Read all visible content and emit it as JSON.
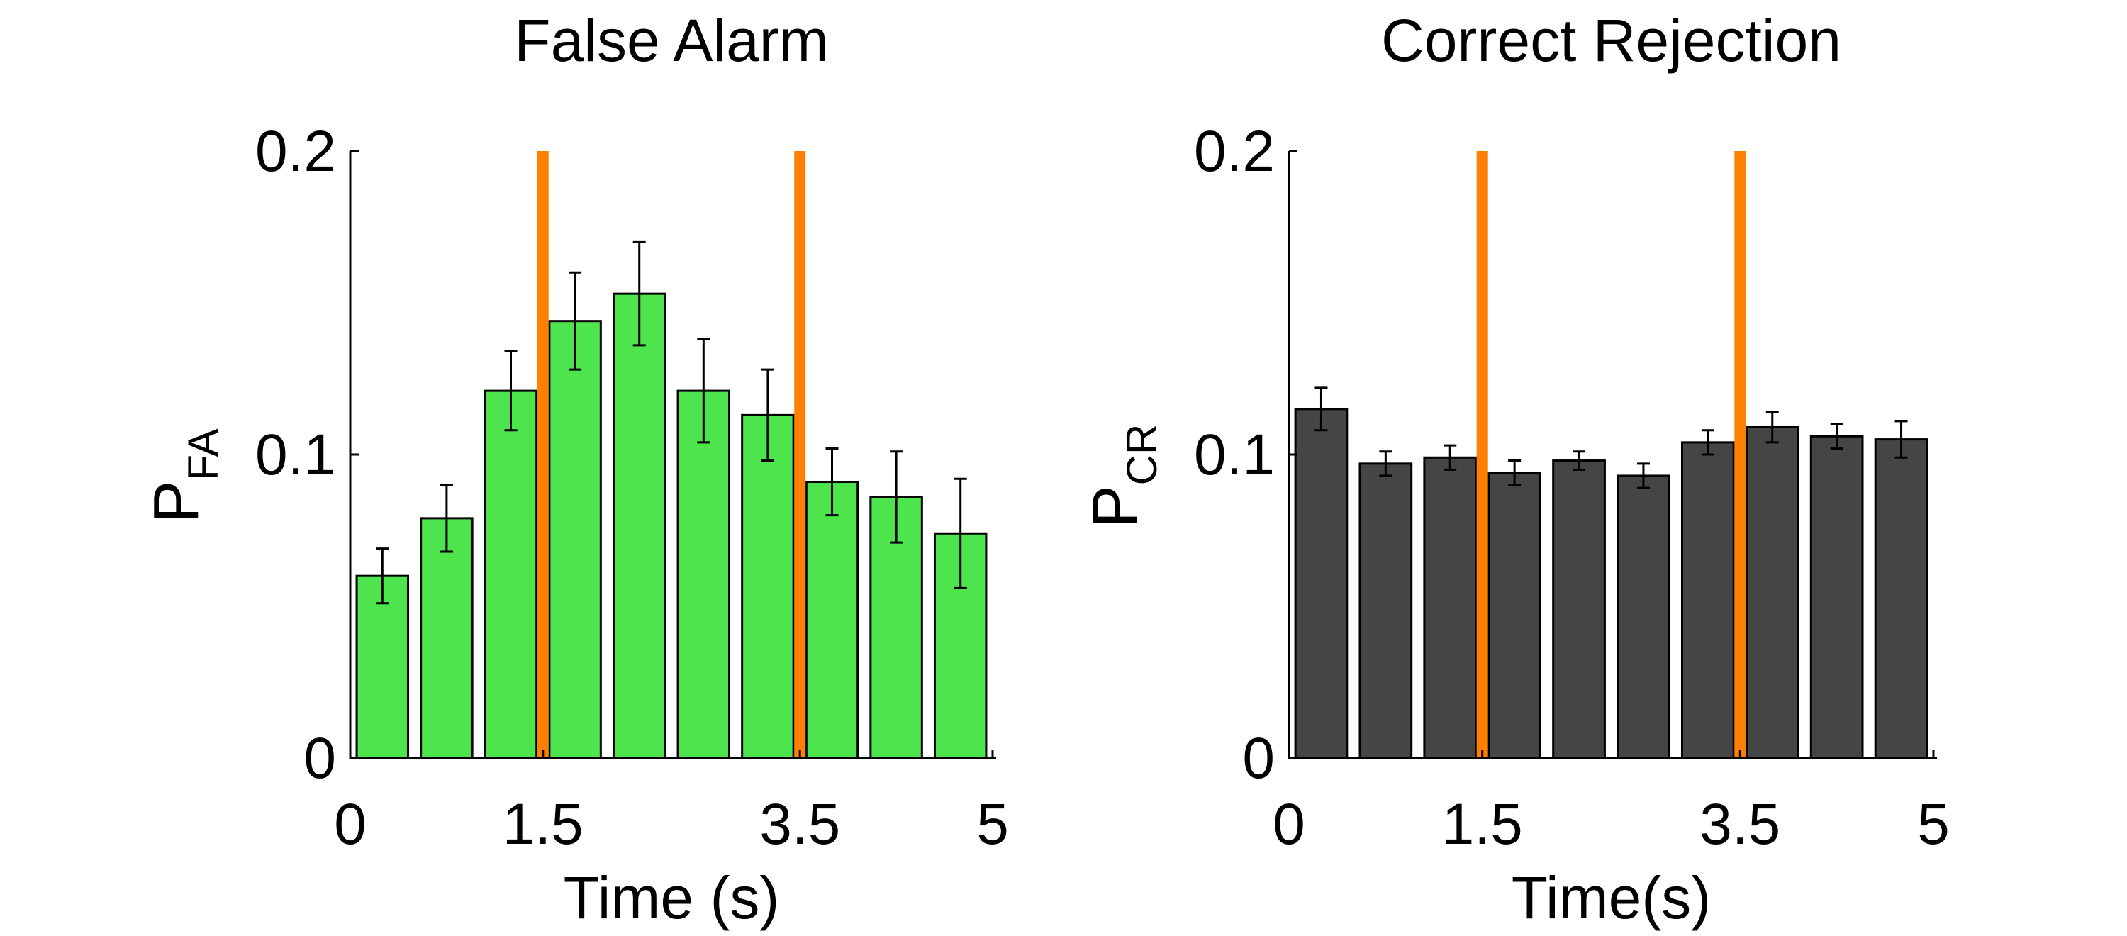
{
  "chart_data": [
    {
      "type": "bar",
      "title": "False Alarm",
      "xlabel": "Time (s)",
      "ylabel": "P",
      "ylabel_subscript": "FA",
      "xlim": [
        0,
        5
      ],
      "ylim": [
        0,
        0.2
      ],
      "xticks": [
        "0",
        "1.5",
        "3.5",
        "5"
      ],
      "yticks": [
        "0",
        "0.1",
        "0.2"
      ],
      "bar_color": "#4de44d",
      "marker_color": "#ff8000",
      "markers_x": [
        1.5,
        3.5
      ],
      "x": [
        0.25,
        0.75,
        1.25,
        1.75,
        2.25,
        2.75,
        3.25,
        3.75,
        4.25,
        4.75
      ],
      "values": [
        0.06,
        0.079,
        0.121,
        0.144,
        0.153,
        0.121,
        0.113,
        0.091,
        0.086,
        0.074
      ],
      "errors": [
        0.009,
        0.011,
        0.013,
        0.016,
        0.017,
        0.017,
        0.015,
        0.011,
        0.015,
        0.018
      ]
    },
    {
      "type": "bar",
      "title": "Correct Rejection",
      "xlabel": "Time(s)",
      "ylabel": "P",
      "ylabel_subscript": "CR",
      "xlim": [
        0,
        5
      ],
      "ylim": [
        0,
        0.2
      ],
      "xticks": [
        "0",
        "1.5",
        "3.5",
        "5"
      ],
      "yticks": [
        "0",
        "0.1",
        "0.2"
      ],
      "bar_color": "#454545",
      "marker_color": "#ff8000",
      "markers_x": [
        1.5,
        3.5
      ],
      "x": [
        0.25,
        0.75,
        1.25,
        1.75,
        2.25,
        2.75,
        3.25,
        3.75,
        4.25,
        4.75
      ],
      "values": [
        0.115,
        0.097,
        0.099,
        0.094,
        0.098,
        0.093,
        0.104,
        0.109,
        0.106,
        0.105
      ],
      "errors": [
        0.007,
        0.004,
        0.004,
        0.004,
        0.003,
        0.004,
        0.004,
        0.005,
        0.004,
        0.006
      ]
    }
  ]
}
